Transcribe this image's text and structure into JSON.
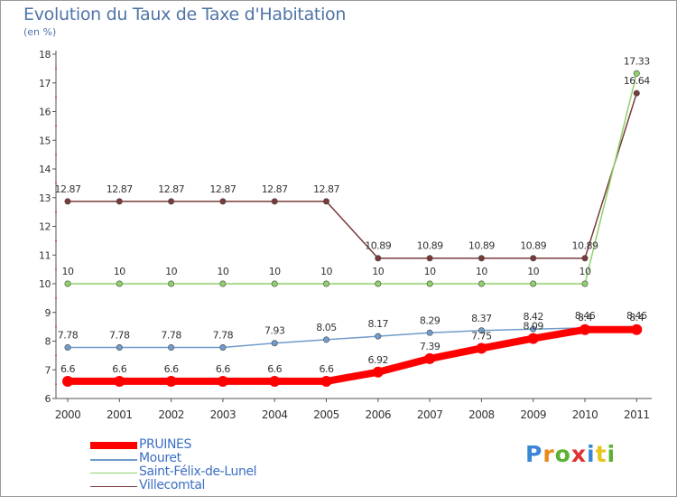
{
  "title": "Evolution du Taux de Taxe d'Habitation",
  "subtitle": "(en %)",
  "logo": {
    "letters": [
      "P",
      "r",
      "o",
      "x",
      "i",
      "t",
      "i"
    ],
    "colors": [
      "#3a86d6",
      "#e88a1c",
      "#5ab132",
      "#e03030",
      "#3a86d6",
      "#e8c51c",
      "#5ab132"
    ]
  },
  "chart_data": {
    "type": "line",
    "x": [
      "2000",
      "2001",
      "2002",
      "2003",
      "2004",
      "2005",
      "2006",
      "2007",
      "2008",
      "2009",
      "2010",
      "2011"
    ],
    "y_ticks": [
      "6",
      "7",
      "8",
      "9",
      "10",
      "11",
      "12",
      "13",
      "14",
      "15",
      "16",
      "17",
      "18"
    ],
    "ylim": [
      6,
      18
    ],
    "grid": false,
    "series": [
      {
        "name": "PRUINES",
        "color": "#ff0000",
        "values": [
          6.6,
          6.6,
          6.6,
          6.6,
          6.6,
          6.6,
          6.92,
          7.39,
          7.75,
          8.09,
          8.4,
          8.4
        ],
        "labels": [
          "6.6",
          "6.6",
          "6.6",
          "6.6",
          "6.6",
          "6.6",
          "6.92",
          "7.39",
          "7.75",
          "8.09",
          "8.4",
          "8.4"
        ]
      },
      {
        "name": "Mouret",
        "color": "#6f9ccb",
        "values": [
          7.78,
          7.78,
          7.78,
          7.78,
          7.93,
          8.05,
          8.17,
          8.29,
          8.37,
          8.42,
          8.46,
          8.46
        ],
        "labels": [
          "7.78",
          "7.78",
          "7.78",
          "7.78",
          "7.93",
          "8.05",
          "8.17",
          "8.29",
          "8.37",
          "8.42",
          "8.46",
          "8.46"
        ]
      },
      {
        "name": "Saint-Félix-de-Lunel",
        "color": "#8fd16a",
        "values": [
          10,
          10,
          10,
          10,
          10,
          10,
          10,
          10,
          10,
          10,
          10,
          17.33
        ],
        "labels": [
          "10",
          "10",
          "10",
          "10",
          "10",
          "10",
          "10",
          "10",
          "10",
          "10",
          "10",
          "17.33"
        ]
      },
      {
        "name": "Villecomtal",
        "color": "#7a3a3a",
        "values": [
          12.87,
          12.87,
          12.87,
          12.87,
          12.87,
          12.87,
          10.89,
          10.89,
          10.89,
          10.89,
          10.89,
          16.64
        ],
        "labels": [
          "12.87",
          "12.87",
          "12.87",
          "12.87",
          "12.87",
          "12.87",
          "10.89",
          "10.89",
          "10.89",
          "10.89",
          "10.89",
          "16.64"
        ]
      }
    ]
  }
}
